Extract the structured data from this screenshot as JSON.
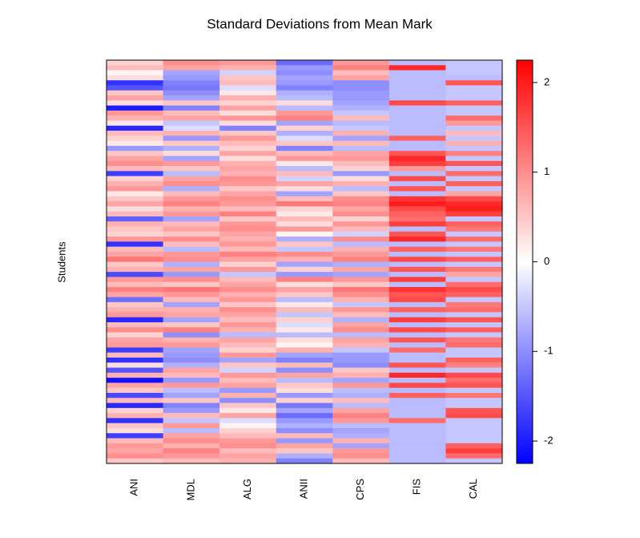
{
  "chart_data": {
    "type": "heatmap",
    "title": "Standard Deviations from Mean Mark",
    "y_label": "Students",
    "categories": [
      "ANI",
      "MDL",
      "ALG",
      "ANII",
      "CPS",
      "FIS",
      "CAL"
    ],
    "values": [
      [
        0.4,
        1.0,
        0.9,
        -1.3,
        0.9,
        -0.6,
        -0.5
      ],
      [
        0.6,
        0.8,
        0.7,
        -0.9,
        1.1,
        1.9,
        -0.5
      ],
      [
        0.1,
        -0.8,
        -0.4,
        -1.0,
        0.6,
        -0.6,
        -0.5
      ],
      [
        0.3,
        -0.9,
        0.5,
        -0.8,
        0.8,
        -0.6,
        -0.6
      ],
      [
        -1.8,
        -1.1,
        0.6,
        -0.9,
        -1.0,
        -0.6,
        1.5
      ],
      [
        -1.5,
        -1.2,
        -0.3,
        -1.1,
        -1.0,
        -0.6,
        -0.5
      ],
      [
        0.5,
        -1.0,
        0.2,
        -0.7,
        -0.9,
        -0.6,
        -0.5
      ],
      [
        0.8,
        -0.8,
        0.7,
        -0.6,
        -0.9,
        -0.6,
        -0.5
      ],
      [
        0.3,
        0.5,
        0.4,
        0.3,
        -0.8,
        1.6,
        1.4
      ],
      [
        -2.0,
        -1.1,
        0.8,
        -0.6,
        -0.7,
        -0.6,
        -0.5
      ],
      [
        0.9,
        0.6,
        0.3,
        0.9,
        -0.5,
        -0.6,
        -0.5
      ],
      [
        0.7,
        0.8,
        0.9,
        1.1,
        0.6,
        -0.6,
        1.3
      ],
      [
        0.2,
        -0.5,
        0.3,
        -0.8,
        -0.6,
        -0.6,
        0.9
      ],
      [
        -1.9,
        -0.3,
        -1.1,
        0.4,
        -0.5,
        -0.6,
        -0.5
      ],
      [
        0.6,
        0.7,
        0.5,
        -0.7,
        0.7,
        -0.6,
        0.6
      ],
      [
        0.4,
        -0.9,
        0.9,
        -0.3,
        -0.8,
        1.4,
        -0.5
      ],
      [
        0.2,
        0.5,
        0.6,
        0.5,
        0.6,
        -0.6,
        0.7
      ],
      [
        -0.9,
        -0.7,
        0.4,
        -1.1,
        -0.6,
        -0.6,
        -0.5
      ],
      [
        0.5,
        0.3,
        0.8,
        0.6,
        0.8,
        1.5,
        1.1
      ],
      [
        0.8,
        -0.8,
        0.3,
        0.9,
        0.9,
        1.9,
        -0.5
      ],
      [
        1.0,
        0.9,
        0.7,
        0.2,
        0.6,
        1.7,
        1.5
      ],
      [
        0.6,
        0.5,
        0.8,
        -0.6,
        0.4,
        0.9,
        -0.5
      ],
      [
        -1.7,
        -0.6,
        0.7,
        0.6,
        -0.9,
        -0.6,
        1.3
      ],
      [
        0.4,
        0.8,
        1.0,
        -0.4,
        0.3,
        1.6,
        -0.5
      ],
      [
        0.7,
        1.0,
        0.9,
        0.8,
        0.7,
        -0.6,
        1.4
      ],
      [
        0.9,
        -0.7,
        0.5,
        0.3,
        -0.6,
        1.5,
        -0.5
      ],
      [
        0.2,
        0.6,
        0.8,
        -0.8,
        0.5,
        -0.6,
        0.8
      ],
      [
        0.5,
        0.9,
        1.0,
        0.6,
        1.0,
        1.8,
        1.6
      ],
      [
        0.8,
        1.1,
        0.9,
        1.2,
        1.1,
        2.0,
        1.9
      ],
      [
        0.3,
        0.7,
        0.6,
        0.4,
        0.8,
        1.6,
        2.0
      ],
      [
        0.6,
        0.9,
        1.1,
        0.2,
        1.0,
        1.4,
        1.7
      ],
      [
        -1.4,
        -0.8,
        0.5,
        0.6,
        0.4,
        1.3,
        -0.5
      ],
      [
        0.7,
        0.6,
        0.9,
        0.3,
        0.9,
        1.7,
        1.4
      ],
      [
        0.5,
        0.8,
        1.0,
        0.9,
        0.6,
        -0.6,
        1.2
      ],
      [
        0.4,
        0.5,
        0.8,
        0.1,
        -0.4,
        1.5,
        -0.5
      ],
      [
        0.9,
        1.0,
        0.7,
        -0.7,
        1.0,
        1.9,
        1.3
      ],
      [
        -1.8,
        0.6,
        0.9,
        0.5,
        -0.6,
        -0.6,
        -0.5
      ],
      [
        0.6,
        -0.6,
        0.6,
        -0.5,
        0.7,
        1.4,
        1.2
      ],
      [
        0.8,
        0.9,
        1.1,
        1.0,
        0.9,
        -0.6,
        -0.5
      ],
      [
        1.2,
        1.0,
        0.8,
        0.7,
        1.1,
        1.6,
        1.4
      ],
      [
        0.5,
        -0.7,
        0.4,
        -0.8,
        -0.7,
        -0.6,
        -0.5
      ],
      [
        0.7,
        0.8,
        0.9,
        0.4,
        0.8,
        1.5,
        1.2
      ],
      [
        -1.6,
        -0.9,
        -0.5,
        -0.9,
        -0.8,
        -0.6,
        0.8
      ],
      [
        0.9,
        1.0,
        0.6,
        1.1,
        0.9,
        1.7,
        -0.5
      ],
      [
        0.6,
        0.5,
        0.8,
        0.3,
        0.5,
        -0.6,
        1.3
      ],
      [
        1.1,
        1.2,
        1.0,
        0.8,
        1.2,
        1.8,
        1.6
      ],
      [
        0.8,
        0.9,
        0.7,
        0.5,
        1.0,
        1.5,
        1.4
      ],
      [
        -1.3,
        0.6,
        0.9,
        -0.6,
        0.7,
        1.6,
        -0.5
      ],
      [
        0.5,
        -0.8,
        0.5,
        0.2,
        -0.5,
        -0.6,
        1.2
      ],
      [
        0.7,
        0.7,
        1.0,
        0.6,
        0.9,
        1.4,
        1.3
      ],
      [
        0.9,
        0.8,
        0.8,
        -0.5,
        0.6,
        -0.6,
        -0.5
      ],
      [
        -1.9,
        -0.8,
        0.6,
        0.4,
        -0.7,
        1.7,
        1.5
      ],
      [
        0.6,
        0.5,
        0.9,
        -0.3,
        0.8,
        -0.6,
        -0.5
      ],
      [
        1.0,
        1.1,
        0.7,
        0.2,
        1.0,
        1.6,
        1.4
      ],
      [
        0.4,
        -1.0,
        -0.6,
        -0.6,
        -0.6,
        -0.6,
        -0.5
      ],
      [
        0.8,
        0.7,
        0.8,
        0.3,
        0.8,
        1.5,
        1.2
      ],
      [
        0.9,
        0.9,
        0.6,
        0.1,
        0.7,
        -0.6,
        1.3
      ],
      [
        -1.7,
        -0.8,
        0.4,
        0.7,
        -0.5,
        1.3,
        -0.5
      ],
      [
        0.6,
        -0.9,
        0.9,
        -0.8,
        -0.9,
        -0.6,
        -0.5
      ],
      [
        -1.8,
        -1.0,
        -0.8,
        -1.1,
        -0.9,
        -0.6,
        1.4
      ],
      [
        0.3,
        -0.7,
        0.5,
        0.6,
        -1.0,
        1.5,
        1.1
      ],
      [
        -1.5,
        0.8,
        -0.4,
        -1.0,
        0.5,
        -0.6,
        -0.5
      ],
      [
        0.7,
        0.6,
        0.9,
        0.8,
        0.7,
        1.9,
        1.6
      ],
      [
        -2.1,
        -0.9,
        0.6,
        -0.6,
        -0.8,
        -0.6,
        1.3
      ],
      [
        0.8,
        0.9,
        0.8,
        0.5,
        0.9,
        1.6,
        1.5
      ],
      [
        0.5,
        -0.6,
        -0.9,
        0.3,
        -0.6,
        -0.6,
        -0.5
      ],
      [
        -1.6,
        -0.8,
        0.7,
        -0.9,
        -0.7,
        1.4,
        1.2
      ],
      [
        0.6,
        0.5,
        -1.0,
        0.4,
        0.6,
        -0.6,
        -0.5
      ],
      [
        -1.9,
        -1.1,
        0.5,
        -1.2,
        -0.6,
        -0.6,
        -0.5
      ],
      [
        0.4,
        -0.9,
        0.2,
        -0.8,
        0.8,
        -0.6,
        1.5
      ],
      [
        0.7,
        0.6,
        0.8,
        -1.3,
        1.1,
        -0.6,
        1.6
      ],
      [
        -1.8,
        -0.5,
        -0.3,
        -0.9,
        0.9,
        1.3,
        -0.5
      ],
      [
        0.5,
        0.9,
        0.1,
        -0.7,
        -0.6,
        -0.6,
        -0.5
      ],
      [
        0.3,
        -0.6,
        0.4,
        -1.0,
        -0.8,
        -0.6,
        -0.5
      ],
      [
        -1.7,
        0.8,
        0.6,
        0.6,
        -0.7,
        -0.6,
        -0.5
      ],
      [
        0.6,
        1.0,
        0.9,
        -0.9,
        0.7,
        -0.6,
        -0.5
      ],
      [
        0.9,
        0.7,
        1.0,
        0.8,
        -0.8,
        -0.6,
        1.4
      ],
      [
        0.8,
        1.1,
        0.6,
        0.5,
        0.9,
        -0.6,
        1.7
      ],
      [
        1.0,
        0.9,
        0.8,
        -0.7,
        1.0,
        -0.6,
        1.3
      ],
      [
        0.5,
        0.6,
        0.7,
        -1.1,
        0.6,
        -0.6,
        -0.5
      ]
    ],
    "zlim": [
      -2.25,
      2.25
    ],
    "zticks": [
      -2,
      -1,
      0,
      1,
      2
    ],
    "colors": [
      "#0000ff",
      "#ffffff",
      "#ff0000"
    ]
  }
}
